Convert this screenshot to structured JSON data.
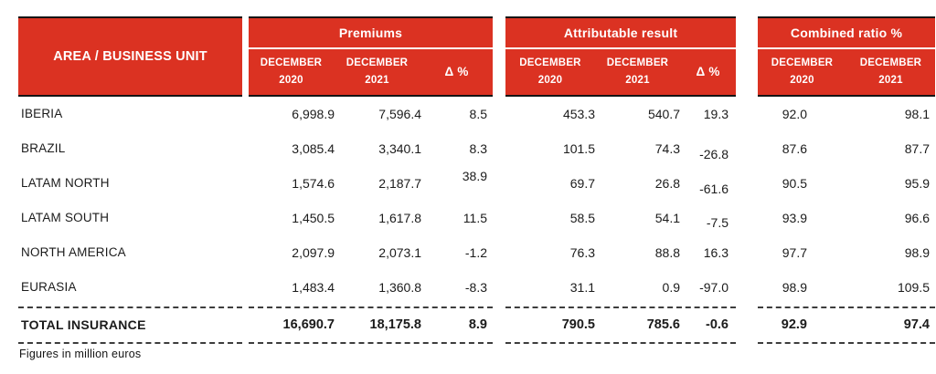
{
  "table": {
    "area_header": "AREA / BUSINESS UNIT",
    "groups": [
      {
        "title": "Premiums",
        "columns": [
          "DECEMBER\n2020",
          "DECEMBER\n2021",
          "Δ %"
        ]
      },
      {
        "title": "Attributable result",
        "columns": [
          "DECEMBER\n2020",
          "DECEMBER\n2021",
          "Δ %"
        ]
      },
      {
        "title": "Combined ratio %",
        "columns": [
          "DECEMBER\n2020",
          "DECEMBER\n2021"
        ]
      }
    ],
    "rows": [
      {
        "area": "IBERIA",
        "values": [
          "6,998.9",
          "7,596.4",
          "8.5",
          "453.3",
          "540.7",
          "19.3",
          "92.0",
          "98.1"
        ]
      },
      {
        "area": "BRAZIL",
        "values": [
          "3,085.4",
          "3,340.1",
          "8.3",
          "101.5",
          "74.3",
          "-26.8",
          "87.6",
          "87.7"
        ]
      },
      {
        "area": "LATAM NORTH",
        "values": [
          "1,574.6",
          "2,187.7",
          "38.9",
          "69.7",
          "26.8",
          "-61.6",
          "90.5",
          "95.9"
        ]
      },
      {
        "area": "LATAM SOUTH",
        "values": [
          "1,450.5",
          "1,617.8",
          "11.5",
          "58.5",
          "54.1",
          "-7.5",
          "93.9",
          "96.6"
        ]
      },
      {
        "area": "NORTH AMERICA",
        "values": [
          "2,097.9",
          "2,073.1",
          "-1.2",
          "76.3",
          "88.8",
          "16.3",
          "97.7",
          "98.9"
        ]
      },
      {
        "area": "EURASIA",
        "values": [
          "1,483.4",
          "1,360.8",
          "-8.3",
          "31.1",
          "0.9",
          "-97.0",
          "98.9",
          "109.5"
        ]
      }
    ],
    "total": {
      "area": "TOTAL INSURANCE",
      "values": [
        "16,690.7",
        "18,175.8",
        "8.9",
        "790.5",
        "785.6",
        "-0.6",
        "92.9",
        "97.4"
      ]
    },
    "footnote": "Figures in million euros"
  },
  "colors": {
    "brand_red": "#DB3222",
    "border_black": "#141414",
    "text": "#1B1B1B",
    "header_text": "#FFFFFF"
  },
  "chart_data": {
    "type": "table",
    "title": "Results by area / business unit",
    "column_groups": [
      "Premiums",
      "Attributable result",
      "Combined ratio %"
    ],
    "columns": [
      "AREA / BUSINESS UNIT",
      "Premiums DECEMBER 2020",
      "Premiums DECEMBER 2021",
      "Premiums Δ %",
      "Attributable result DECEMBER 2020",
      "Attributable result DECEMBER 2021",
      "Attributable result Δ %",
      "Combined ratio % DECEMBER 2020",
      "Combined ratio % DECEMBER 2021"
    ],
    "rows": [
      [
        "IBERIA",
        6998.9,
        7596.4,
        8.5,
        453.3,
        540.7,
        19.3,
        92.0,
        98.1
      ],
      [
        "BRAZIL",
        3085.4,
        3340.1,
        8.3,
        101.5,
        74.3,
        -26.8,
        87.6,
        87.7
      ],
      [
        "LATAM NORTH",
        1574.6,
        2187.7,
        38.9,
        69.7,
        26.8,
        -61.6,
        90.5,
        95.9
      ],
      [
        "LATAM SOUTH",
        1450.5,
        1617.8,
        11.5,
        58.5,
        54.1,
        -7.5,
        93.9,
        96.6
      ],
      [
        "NORTH AMERICA",
        2097.9,
        2073.1,
        -1.2,
        76.3,
        88.8,
        16.3,
        97.7,
        98.9
      ],
      [
        "EURASIA",
        1483.4,
        1360.8,
        -8.3,
        31.1,
        0.9,
        -97.0,
        98.9,
        109.5
      ],
      [
        "TOTAL INSURANCE",
        16690.7,
        18175.8,
        8.9,
        790.5,
        785.6,
        -0.6,
        92.9,
        97.4
      ]
    ],
    "footnote": "Figures in million euros",
    "units": "million euros"
  }
}
